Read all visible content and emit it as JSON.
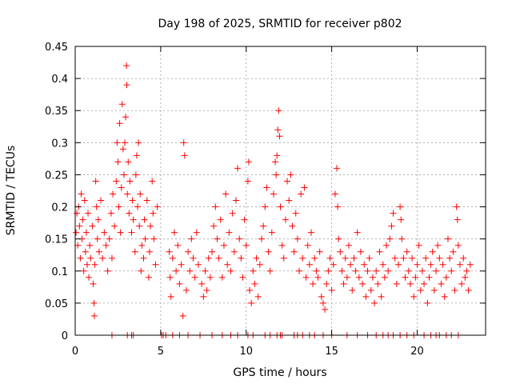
{
  "chart_data": {
    "type": "scatter",
    "title": "Day 198 of 2025, SRMTID for receiver p802",
    "xlabel": "GPS time / hours",
    "ylabel": "SRMTID / TECUs",
    "xlim": [
      0,
      24
    ],
    "ylim": [
      0,
      0.45
    ],
    "x_ticks": [
      0,
      5,
      10,
      15,
      20
    ],
    "x_tick_labels": [
      "0",
      "5",
      "10",
      "15",
      "20"
    ],
    "y_ticks": [
      0,
      0.05,
      0.1,
      0.15,
      0.2,
      0.25,
      0.3,
      0.35,
      0.4,
      0.45
    ],
    "y_tick_labels": [
      "0",
      "0.05",
      "0.1",
      "0.15",
      "0.2",
      "0.25",
      "0.3",
      "0.35",
      "0.4",
      "0.45"
    ],
    "grid": true,
    "marker": "+",
    "color": "#ff0000",
    "series": [
      {
        "name": "SRMTID",
        "points": [
          [
            0.05,
            0.16
          ],
          [
            0.1,
            0.19
          ],
          [
            0.15,
            0.14
          ],
          [
            0.2,
            0.2
          ],
          [
            0.25,
            0.17
          ],
          [
            0.3,
            0.12
          ],
          [
            0.35,
            0.22
          ],
          [
            0.4,
            0.15
          ],
          [
            0.45,
            0.18
          ],
          [
            0.5,
            0.1
          ],
          [
            0.55,
            0.21
          ],
          [
            0.6,
            0.13
          ],
          [
            0.65,
            0.16
          ],
          [
            0.7,
            0.11
          ],
          [
            0.75,
            0.19
          ],
          [
            0.8,
            0.09
          ],
          [
            0.85,
            0.14
          ],
          [
            0.9,
            0.12
          ],
          [
            1.0,
            0.17
          ],
          [
            1.05,
            0.08
          ],
          [
            1.1,
            0.05
          ],
          [
            1.12,
            0.03
          ],
          [
            1.15,
            0.11
          ],
          [
            1.2,
            0.24
          ],
          [
            1.25,
            0.2
          ],
          [
            1.3,
            0.15
          ],
          [
            1.35,
            0.18
          ],
          [
            1.4,
            0.13
          ],
          [
            1.5,
            0.21
          ],
          [
            1.6,
            0.12
          ],
          [
            1.7,
            0.16
          ],
          [
            1.8,
            0.14
          ],
          [
            1.9,
            0.1
          ],
          [
            2.0,
            0.15
          ],
          [
            2.1,
            0.19
          ],
          [
            2.15,
            0.12
          ],
          [
            2.2,
            0.22
          ],
          [
            2.3,
            0.17
          ],
          [
            2.4,
            0.24
          ],
          [
            2.45,
            0.3
          ],
          [
            2.5,
            0.27
          ],
          [
            2.55,
            0.2
          ],
          [
            2.6,
            0.33
          ],
          [
            2.65,
            0.16
          ],
          [
            2.7,
            0.23
          ],
          [
            2.75,
            0.36
          ],
          [
            2.8,
            0.29
          ],
          [
            2.85,
            0.25
          ],
          [
            2.9,
            0.3
          ],
          [
            2.95,
            0.34
          ],
          [
            3.0,
            0.42
          ],
          [
            3.02,
            0.39
          ],
          [
            3.05,
            0.22
          ],
          [
            3.1,
            0.27
          ],
          [
            3.15,
            0.19
          ],
          [
            3.2,
            0.24
          ],
          [
            3.3,
            0.16
          ],
          [
            3.35,
            0.21
          ],
          [
            3.4,
            0.18
          ],
          [
            3.5,
            0.13
          ],
          [
            3.55,
            0.25
          ],
          [
            3.6,
            0.28
          ],
          [
            3.65,
            0.2
          ],
          [
            3.7,
            0.3
          ],
          [
            3.75,
            0.17
          ],
          [
            3.8,
            0.22
          ],
          [
            3.85,
            0.1
          ],
          [
            3.9,
            0.14
          ],
          [
            4.0,
            0.12
          ],
          [
            4.05,
            0.18
          ],
          [
            4.1,
            0.15
          ],
          [
            4.2,
            0.21
          ],
          [
            4.3,
            0.09
          ],
          [
            4.35,
            0.13
          ],
          [
            4.4,
            0.17
          ],
          [
            4.5,
            0.24
          ],
          [
            4.55,
            0.19
          ],
          [
            4.6,
            0.15
          ],
          [
            4.7,
            0.11
          ],
          [
            4.8,
            0.2
          ],
          [
            5.5,
            0.13
          ],
          [
            5.55,
            0.09
          ],
          [
            5.6,
            0.06
          ],
          [
            5.7,
            0.12
          ],
          [
            5.8,
            0.16
          ],
          [
            5.9,
            0.1
          ],
          [
            6.0,
            0.14
          ],
          [
            6.1,
            0.08
          ],
          [
            6.2,
            0.11
          ],
          [
            6.3,
            0.03
          ],
          [
            6.35,
            0.3
          ],
          [
            6.4,
            0.28
          ],
          [
            6.5,
            0.07
          ],
          [
            6.6,
            0.13
          ],
          [
            6.7,
            0.1
          ],
          [
            6.8,
            0.15
          ],
          [
            6.9,
            0.12
          ],
          [
            7.0,
            0.09
          ],
          [
            7.1,
            0.16
          ],
          [
            7.2,
            0.11
          ],
          [
            7.4,
            0.08
          ],
          [
            7.5,
            0.06
          ],
          [
            7.6,
            0.1
          ],
          [
            7.7,
            0.07
          ],
          [
            7.8,
            0.12
          ],
          [
            7.9,
            0.09
          ],
          [
            8.0,
            0.13
          ],
          [
            8.1,
            0.17
          ],
          [
            8.2,
            0.2
          ],
          [
            8.3,
            0.15
          ],
          [
            8.4,
            0.12
          ],
          [
            8.5,
            0.18
          ],
          [
            8.6,
            0.09
          ],
          [
            8.7,
            0.14
          ],
          [
            8.8,
            0.22
          ],
          [
            8.9,
            0.11
          ],
          [
            9.0,
            0.16
          ],
          [
            9.1,
            0.1
          ],
          [
            9.2,
            0.19
          ],
          [
            9.3,
            0.13
          ],
          [
            9.4,
            0.21
          ],
          [
            9.5,
            0.26
          ],
          [
            9.6,
            0.15
          ],
          [
            9.7,
            0.12
          ],
          [
            9.8,
            0.09
          ],
          [
            9.9,
            0.18
          ],
          [
            10.0,
            0.14
          ],
          [
            10.1,
            0.24
          ],
          [
            10.15,
            0.27
          ],
          [
            10.2,
            0.07
          ],
          [
            10.3,
            0.05
          ],
          [
            10.4,
            0.1
          ],
          [
            10.5,
            0.08
          ],
          [
            10.6,
            0.12
          ],
          [
            10.7,
            0.06
          ],
          [
            10.8,
            0.11
          ],
          [
            10.9,
            0.15
          ],
          [
            11.0,
            0.17
          ],
          [
            11.1,
            0.2
          ],
          [
            11.2,
            0.23
          ],
          [
            11.3,
            0.13
          ],
          [
            11.4,
            0.1
          ],
          [
            11.5,
            0.16
          ],
          [
            11.6,
            0.22
          ],
          [
            11.7,
            0.27
          ],
          [
            11.75,
            0.25
          ],
          [
            11.8,
            0.28
          ],
          [
            11.85,
            0.32
          ],
          [
            11.9,
            0.35
          ],
          [
            11.95,
            0.31
          ],
          [
            12.0,
            0.2
          ],
          [
            12.1,
            0.14
          ],
          [
            12.2,
            0.12
          ],
          [
            12.3,
            0.18
          ],
          [
            12.4,
            0.24
          ],
          [
            12.5,
            0.21
          ],
          [
            12.6,
            0.25
          ],
          [
            12.7,
            0.17
          ],
          [
            12.8,
            0.13
          ],
          [
            12.9,
            0.19
          ],
          [
            13.0,
            0.15
          ],
          [
            13.1,
            0.1
          ],
          [
            13.2,
            0.22
          ],
          [
            13.3,
            0.12
          ],
          [
            13.4,
            0.23
          ],
          [
            13.5,
            0.09
          ],
          [
            13.6,
            0.14
          ],
          [
            13.7,
            0.11
          ],
          [
            13.8,
            0.16
          ],
          [
            13.9,
            0.08
          ],
          [
            14.0,
            0.12
          ],
          [
            14.1,
            0.1
          ],
          [
            14.2,
            0.09
          ],
          [
            14.3,
            0.13
          ],
          [
            14.4,
            0.06
          ],
          [
            14.5,
            0.05
          ],
          [
            14.6,
            0.04
          ],
          [
            14.7,
            0.08
          ],
          [
            14.8,
            0.1
          ],
          [
            14.9,
            0.12
          ],
          [
            15.0,
            0.07
          ],
          [
            15.1,
            0.11
          ],
          [
            15.2,
            0.22
          ],
          [
            15.3,
            0.26
          ],
          [
            15.35,
            0.2
          ],
          [
            15.4,
            0.15
          ],
          [
            15.5,
            0.13
          ],
          [
            15.6,
            0.1
          ],
          [
            15.7,
            0.08
          ],
          [
            15.8,
            0.12
          ],
          [
            15.9,
            0.09
          ],
          [
            16.0,
            0.14
          ],
          [
            16.1,
            0.11
          ],
          [
            16.2,
            0.07
          ],
          [
            16.3,
            0.12
          ],
          [
            16.4,
            0.1
          ],
          [
            16.5,
            0.16
          ],
          [
            16.6,
            0.09
          ],
          [
            16.7,
            0.13
          ],
          [
            16.8,
            0.08
          ],
          [
            16.9,
            0.11
          ],
          [
            17.0,
            0.06
          ],
          [
            17.1,
            0.1
          ],
          [
            17.2,
            0.12
          ],
          [
            17.3,
            0.07
          ],
          [
            17.4,
            0.09
          ],
          [
            17.5,
            0.05
          ],
          [
            17.6,
            0.1
          ],
          [
            17.7,
            0.08
          ],
          [
            17.8,
            0.13
          ],
          [
            17.9,
            0.06
          ],
          [
            18.0,
            0.11
          ],
          [
            18.1,
            0.09
          ],
          [
            18.2,
            0.14
          ],
          [
            18.3,
            0.1
          ],
          [
            18.4,
            0.15
          ],
          [
            18.5,
            0.17
          ],
          [
            18.6,
            0.19
          ],
          [
            18.7,
            0.12
          ],
          [
            18.8,
            0.08
          ],
          [
            18.9,
            0.11
          ],
          [
            19.0,
            0.2
          ],
          [
            19.05,
            0.18
          ],
          [
            19.1,
            0.15
          ],
          [
            19.2,
            0.12
          ],
          [
            19.3,
            0.09
          ],
          [
            19.4,
            0.13
          ],
          [
            19.5,
            0.1
          ],
          [
            19.6,
            0.08
          ],
          [
            19.7,
            0.12
          ],
          [
            19.8,
            0.06
          ],
          [
            19.9,
            0.09
          ],
          [
            20.0,
            0.11
          ],
          [
            20.1,
            0.14
          ],
          [
            20.2,
            0.07
          ],
          [
            20.3,
            0.1
          ],
          [
            20.4,
            0.08
          ],
          [
            20.5,
            0.12
          ],
          [
            20.6,
            0.05
          ],
          [
            20.7,
            0.09
          ],
          [
            20.8,
            0.11
          ],
          [
            20.9,
            0.13
          ],
          [
            21.0,
            0.07
          ],
          [
            21.1,
            0.1
          ],
          [
            21.2,
            0.14
          ],
          [
            21.3,
            0.12
          ],
          [
            21.4,
            0.08
          ],
          [
            21.5,
            0.11
          ],
          [
            21.6,
            0.06
          ],
          [
            21.7,
            0.09
          ],
          [
            21.8,
            0.15
          ],
          [
            21.9,
            0.12
          ],
          [
            22.0,
            0.1
          ],
          [
            22.1,
            0.13
          ],
          [
            22.2,
            0.07
          ],
          [
            22.3,
            0.2
          ],
          [
            22.35,
            0.18
          ],
          [
            22.4,
            0.14
          ],
          [
            22.5,
            0.11
          ],
          [
            22.6,
            0.08
          ],
          [
            22.7,
            0.12
          ],
          [
            22.8,
            0.09
          ],
          [
            22.9,
            0.1
          ],
          [
            23.0,
            0.07
          ],
          [
            23.1,
            0.11
          ]
        ],
        "zero_points": [
          2.15,
          3.05,
          3.3,
          3.4,
          5.05,
          5.15,
          5.3,
          5.7,
          6.1,
          6.6,
          7.3,
          8.0,
          8.6,
          9.1,
          9.5,
          10.1,
          10.4,
          11.1,
          11.4,
          11.8,
          12.0,
          12.1,
          12.8,
          13.0,
          13.3,
          13.7,
          14.0,
          14.5,
          15.0,
          15.9,
          16.5,
          17.1,
          17.6,
          18.0,
          18.3,
          18.6,
          19.0,
          19.4,
          19.8,
          20.4,
          20.8,
          21.1,
          21.3,
          21.7,
          22.0,
          22.4
        ]
      }
    ]
  }
}
